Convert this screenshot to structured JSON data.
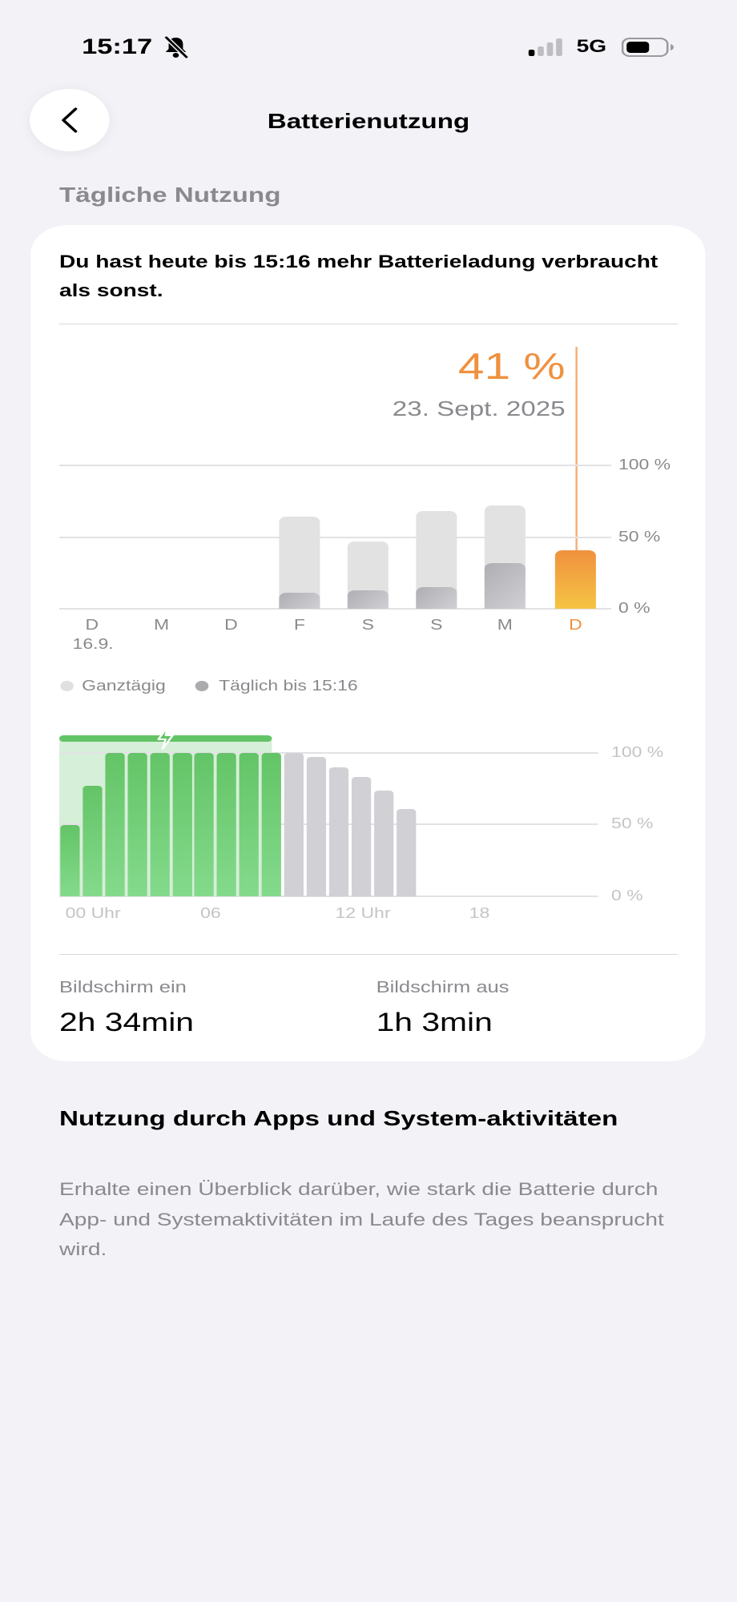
{
  "status_bar": {
    "time": "15:17",
    "network": "5G",
    "icons": [
      "bell-slash-icon",
      "signal-icon",
      "battery-icon"
    ]
  },
  "nav": {
    "title": "Batterienutzung",
    "back_icon": "chevron-left-icon"
  },
  "section_title": "Tägliche Nutzung",
  "card": {
    "headline": "Du hast heute bis 15:16 mehr Batterieladung verbraucht als sonst.",
    "selected": {
      "value": "41 %",
      "date": "23. Sept. 2025"
    },
    "legend": [
      "Ganztägig",
      "Täglich bis 15:16"
    ],
    "stats": [
      {
        "label": "Bildschirm ein",
        "value": "2h 34min"
      },
      {
        "label": "Bildschirm aus",
        "value": "1h 3min"
      }
    ]
  },
  "chart_data": [
    {
      "type": "bar",
      "categories": [
        "D",
        "M",
        "D",
        "F",
        "S",
        "S",
        "M",
        "D"
      ],
      "first_category_sublabel": "16.9.",
      "series": [
        {
          "name": "Ganztägig",
          "values": [
            null,
            null,
            null,
            64,
            47,
            68,
            72,
            41
          ]
        },
        {
          "name": "Täglich bis 15:16",
          "values": [
            null,
            null,
            null,
            11,
            13,
            15,
            32,
            41
          ]
        }
      ],
      "selected_index": 7,
      "yticks": [
        "0 %",
        "50 %",
        "100 %"
      ],
      "ylim": [
        0,
        100
      ],
      "colors": {
        "full": "#e2e2e3",
        "partial": "#b3b3b8",
        "selected_top": "#f0913e",
        "selected_bottom": "#f5c443"
      }
    },
    {
      "type": "bar",
      "xticks": [
        "00 Uhr",
        "06",
        "12 Uhr",
        "18"
      ],
      "hours": [
        0,
        1,
        2,
        3,
        4,
        5,
        6,
        7,
        8,
        9,
        10,
        11,
        12,
        13,
        14,
        15
      ],
      "values": [
        50,
        77,
        100,
        100,
        100,
        100,
        100,
        100,
        100,
        100,
        100,
        97,
        90,
        83,
        74,
        61
      ],
      "charging": [
        true,
        true,
        true,
        true,
        true,
        true,
        true,
        true,
        true,
        true,
        false,
        false,
        false,
        false,
        false,
        false
      ],
      "yticks": [
        "0 %",
        "50 %",
        "100 %"
      ],
      "ylim": [
        0,
        100
      ],
      "colors": {
        "charging": "#63c466",
        "discharging": "#d1d1d5",
        "charging_band": "#d6efd8"
      }
    }
  ],
  "apps_section": {
    "title": "Nutzung durch Apps und System-aktivitäten",
    "description": "Erhalte einen Überblick darüber, wie stark die Batterie durch App- und Systemaktivitäten im Laufe des Tages beansprucht wird."
  }
}
